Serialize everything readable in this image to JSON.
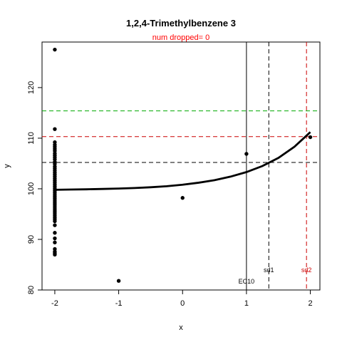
{
  "chart_data": {
    "type": "scatter",
    "title": "1,2,4-Trimethylbenzene 3",
    "subtitle": "num dropped= 0",
    "xlabel": "x",
    "ylabel": "y",
    "xlim": [
      -2.2,
      2.15
    ],
    "ylim": [
      80,
      129
    ],
    "x_ticks": [
      -2,
      -1,
      0,
      1,
      2
    ],
    "y_ticks": [
      80,
      90,
      100,
      110,
      120
    ],
    "grid": false,
    "points": {
      "x": [
        -2,
        -2,
        -2,
        -2,
        -2,
        -2,
        -2,
        -2,
        -2,
        -2,
        -2,
        -2,
        -2,
        -2,
        -2,
        -2,
        -2,
        -2,
        -2,
        -2,
        -2,
        -2,
        -2,
        -2,
        -2,
        -2,
        -2,
        -2,
        -2,
        -2,
        -2,
        -2,
        -2,
        -2,
        -2,
        -2,
        -2,
        -2,
        -2,
        -2,
        -2,
        -2,
        -2,
        -2,
        -2,
        -2,
        -2,
        -2,
        -2,
        -1,
        0,
        1,
        2
      ],
      "y": [
        127.5,
        111.8,
        109.2,
        108.7,
        108.3,
        107.9,
        107.5,
        107.0,
        106.6,
        106.2,
        105.8,
        105.3,
        104.9,
        104.4,
        104.0,
        103.6,
        103.2,
        102.8,
        102.4,
        102.0,
        101.6,
        101.2,
        100.8,
        100.4,
        100.0,
        99.6,
        99.2,
        98.8,
        98.4,
        98.0,
        97.6,
        97.2,
        96.8,
        96.4,
        96.0,
        95.6,
        95.2,
        94.8,
        94.4,
        94.0,
        93.6,
        92.8,
        91.3,
        90.2,
        89.4,
        88.1,
        87.6,
        87.3,
        87.0,
        81.8,
        98.2,
        106.9,
        110.2
      ],
      "color": "#000000"
    },
    "fit_curve": {
      "x": [
        -2,
        -1.75,
        -1.5,
        -1.25,
        -1,
        -0.75,
        -0.5,
        -0.25,
        0,
        0.25,
        0.5,
        0.75,
        1,
        1.25,
        1.5,
        1.75,
        2
      ],
      "y": [
        99.8,
        99.85,
        99.9,
        99.97,
        100.05,
        100.15,
        100.3,
        100.5,
        100.8,
        101.2,
        101.7,
        102.4,
        103.3,
        104.5,
        106.1,
        108.3,
        111.2
      ],
      "color": "#000000"
    },
    "hlines": [
      {
        "y": 105.2,
        "color": "#000000",
        "style": "dashed"
      },
      {
        "y": 110.3,
        "color": "#cc0000",
        "style": "dashed"
      },
      {
        "y": 115.4,
        "color": "#00aa00",
        "style": "dashed"
      }
    ],
    "vlines": [
      {
        "x": 1.0,
        "color": "#000000",
        "style": "solid",
        "label": "EC10",
        "label_color": "#000000"
      },
      {
        "x": 1.35,
        "color": "#000000",
        "style": "dashed",
        "label": "sd1",
        "label_color": "#000000"
      },
      {
        "x": 1.94,
        "color": "#cc0000",
        "style": "dashed",
        "label": "sd2",
        "label_color": "#cc0000"
      }
    ]
  }
}
